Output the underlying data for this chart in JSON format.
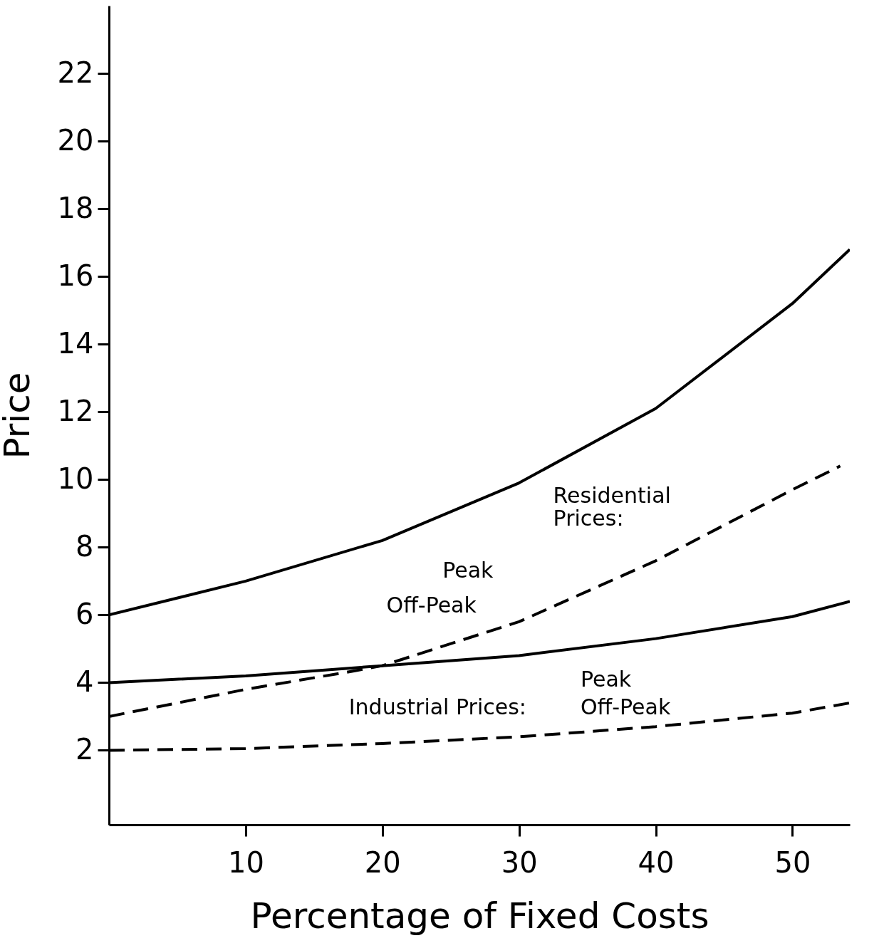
{
  "chart_data": {
    "type": "line",
    "xlabel": "Percentage of Fixed Costs",
    "ylabel": "Price",
    "xlim": [
      0,
      54.2
    ],
    "ylim": [
      -0.2,
      24
    ],
    "xticks": [
      10,
      20,
      30,
      40,
      50
    ],
    "yticks": [
      2,
      4,
      6,
      8,
      10,
      12,
      14,
      16,
      18,
      20,
      22
    ],
    "grid": false,
    "marker": "none",
    "series": [
      {
        "color": "#000000",
        "line_style": "solid",
        "x": [
          0,
          10,
          20,
          30,
          40,
          50,
          54.2
        ],
        "values": [
          6,
          7.0,
          8.2,
          9.9,
          12.1,
          15.2,
          16.8
        ]
      },
      {
        "color": "#000000",
        "line_style": "dashed",
        "x": [
          0,
          10,
          18,
          20,
          30,
          40,
          50,
          53.5
        ],
        "values": [
          3,
          3.8,
          4.35,
          4.5,
          5.8,
          7.6,
          9.7,
          10.4
        ]
      },
      {
        "color": "#000000",
        "line_style": "solid",
        "x": [
          0,
          10,
          20,
          30,
          40,
          50,
          54.2
        ],
        "values": [
          4,
          4.2,
          4.5,
          4.8,
          5.3,
          5.95,
          6.4
        ]
      },
      {
        "color": "#000000",
        "line_style": "dashed",
        "x": [
          0,
          10,
          20,
          30,
          40,
          50,
          54.2
        ],
        "values": [
          2,
          2.05,
          2.2,
          2.4,
          2.7,
          3.1,
          3.4
        ]
      }
    ],
    "annotations": [
      "Residential Prices:",
      "Peak",
      "Off-Peak",
      "Industrial Prices:",
      "Peak",
      "Off-Peak"
    ]
  }
}
